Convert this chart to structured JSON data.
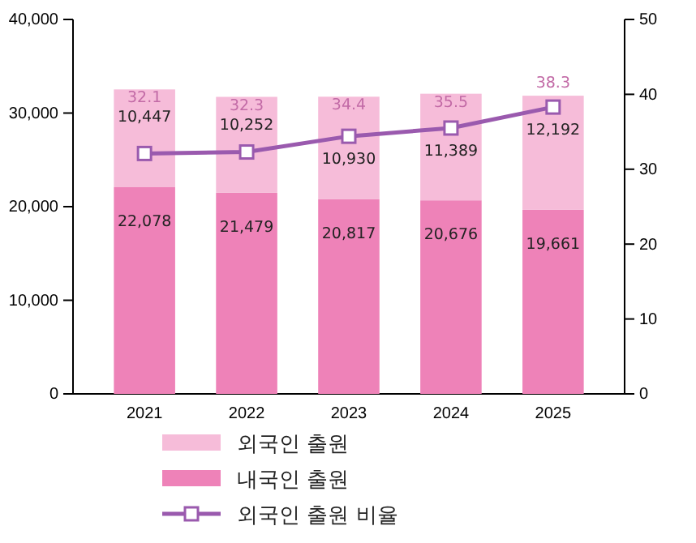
{
  "chart_data": {
    "type": "bar",
    "stacked": true,
    "categories": [
      "2021",
      "2022",
      "2023",
      "2024",
      "2025"
    ],
    "series": [
      {
        "name": "내국인 출원",
        "color": "#ee82b8",
        "values": [
          22078,
          21479,
          20817,
          20676,
          19661
        ],
        "value_labels": [
          "22,078",
          "21,479",
          "20,817",
          "20,676",
          "19,661"
        ]
      },
      {
        "name": "외국인 출원",
        "color": "#f6bcd9",
        "values": [
          10447,
          10252,
          10930,
          11389,
          12192
        ],
        "value_labels": [
          "10,447",
          "10,252",
          "10,930",
          "11,389",
          "12,192"
        ]
      },
      {
        "name": "외국인 출원 비율",
        "type": "line",
        "axis": "y2",
        "color": "#9a5aae",
        "marker": "square",
        "values": [
          32.1,
          32.3,
          34.4,
          35.5,
          38.3
        ],
        "value_labels": [
          "32.1",
          "32.3",
          "34.4",
          "35.5",
          "38.3"
        ]
      }
    ],
    "ylim": [
      0,
      40000
    ],
    "yticks": [
      {
        "value": 0,
        "label": "0"
      },
      {
        "value": 10000,
        "label": "10,000"
      },
      {
        "value": 20000,
        "label": "20,000"
      },
      {
        "value": 30000,
        "label": "30,000"
      },
      {
        "value": 40000,
        "label": "40,000"
      }
    ],
    "y2lim": [
      0,
      50
    ],
    "y2ticks": [
      0,
      10,
      20,
      30,
      40,
      50
    ],
    "grid": false,
    "legend": "bottom"
  }
}
